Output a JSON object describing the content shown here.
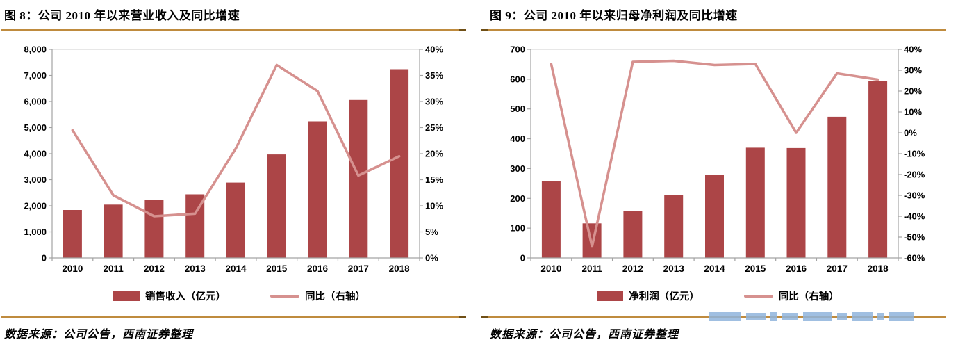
{
  "colors": {
    "bar": "#AC4547",
    "line": "#D6918F",
    "gold": "#BF8B3E",
    "axis": "#A3A3A3",
    "watermark": "#8FB4DC"
  },
  "panels": [
    {
      "title": "图 8：公司 2010 年以来营业收入及同比增速",
      "legend": [
        {
          "label": "销售收入（亿元）",
          "type": "bar"
        },
        {
          "label": "同比（右轴）",
          "type": "line"
        }
      ],
      "source": "数据来源：公司公告，西南证券整理"
    },
    {
      "title": "图 9：公司 2010 年以来归母净利润及同比增速",
      "legend": [
        {
          "label": "净利润（亿元）",
          "type": "bar"
        },
        {
          "label": "同比（右轴）",
          "type": "line"
        }
      ],
      "source": "数据来源：公司公告，西南证券整理"
    }
  ],
  "chart_data": [
    {
      "type": "bar",
      "title": "图 8：公司 2010 年以来营业收入及同比增速",
      "categories": [
        "2010",
        "2011",
        "2012",
        "2013",
        "2014",
        "2015",
        "2016",
        "2017",
        "2018"
      ],
      "series": [
        {
          "name": "销售收入（亿元）",
          "type": "bar",
          "axis": "left",
          "values": [
            1840,
            2045,
            2230,
            2440,
            2890,
            3970,
            5240,
            6060,
            7240
          ]
        },
        {
          "name": "同比（右轴）",
          "type": "line",
          "axis": "right",
          "values": [
            24.5,
            12,
            8,
            8.5,
            21,
            37,
            32,
            15.8,
            19.5
          ]
        }
      ],
      "axes": {
        "left": {
          "min": 0,
          "max": 8000,
          "step": 1000
        },
        "right": {
          "min": 0,
          "max": 40,
          "step": 5,
          "unit": "%"
        }
      },
      "yticks_left": [
        "0",
        "1,000",
        "2,000",
        "3,000",
        "4,000",
        "5,000",
        "6,000",
        "7,000",
        "8,000"
      ],
      "yticks_right": [
        "0%",
        "5%",
        "10%",
        "15%",
        "20%",
        "25%",
        "30%",
        "35%",
        "40%"
      ],
      "grid": false,
      "legend_position": "bottom"
    },
    {
      "type": "bar",
      "title": "图 9：公司 2010 年以来归母净利润及同比增速",
      "categories": [
        "2010",
        "2011",
        "2012",
        "2013",
        "2014",
        "2015",
        "2016",
        "2017",
        "2018"
      ],
      "series": [
        {
          "name": "净利润（亿元）",
          "type": "bar",
          "axis": "left",
          "values": [
            258,
            116,
            157,
            211,
            278,
            370,
            369,
            474,
            595
          ]
        },
        {
          "name": "同比（右轴）",
          "type": "line",
          "axis": "right",
          "values": [
            33,
            -54.5,
            34,
            34.5,
            32.5,
            33,
            0,
            28.5,
            25.5
          ]
        }
      ],
      "axes": {
        "left": {
          "min": 0,
          "max": 700,
          "step": 100
        },
        "right": {
          "min": -60,
          "max": 40,
          "step": 10,
          "unit": "%"
        }
      },
      "yticks_left": [
        "0",
        "100",
        "200",
        "300",
        "400",
        "500",
        "600",
        "700"
      ],
      "yticks_right": [
        "-60%",
        "-50%",
        "-40%",
        "-30%",
        "-20%",
        "-10%",
        "0%",
        "10%",
        "20%",
        "30%",
        "40%"
      ],
      "grid": false,
      "legend_position": "bottom"
    }
  ]
}
